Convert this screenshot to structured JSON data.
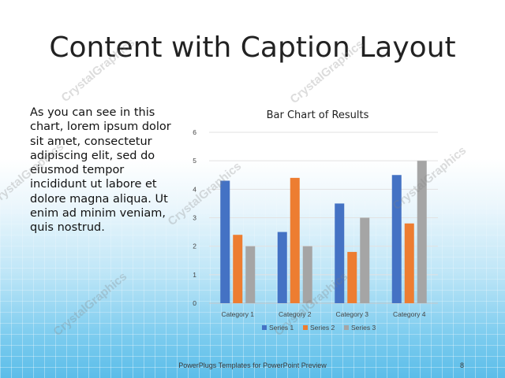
{
  "slide": {
    "title": "Content with Caption Layout",
    "body": "As you can see in this chart, lorem ipsum dolor sit amet, consectetur adipiscing elit, sed do eiusmod tempor incididunt ut labore et dolore magna aliqua. Ut enim ad minim veniam, quis nostrud.",
    "footer": "PowerPlugs Templates for PowerPoint Preview",
    "page_number": "8",
    "watermark": "CrystalGraphics"
  },
  "chart_data": {
    "type": "bar",
    "title": "Bar Chart of Results",
    "categories": [
      "Category 1",
      "Category 2",
      "Category 3",
      "Category 4"
    ],
    "series": [
      {
        "name": "Series 1",
        "values": [
          4.3,
          2.5,
          3.5,
          4.5
        ],
        "color": "#4472C4"
      },
      {
        "name": "Series 2",
        "values": [
          2.4,
          4.4,
          1.8,
          2.8
        ],
        "color": "#ED7D31"
      },
      {
        "name": "Series 3",
        "values": [
          2.0,
          2.0,
          3.0,
          5.0
        ],
        "color": "#A5A5A5"
      }
    ],
    "ylim": [
      0,
      6
    ],
    "yticks": [
      "0",
      "1",
      "2",
      "3",
      "4",
      "5",
      "6"
    ],
    "grid": true,
    "legend": "bottom"
  }
}
